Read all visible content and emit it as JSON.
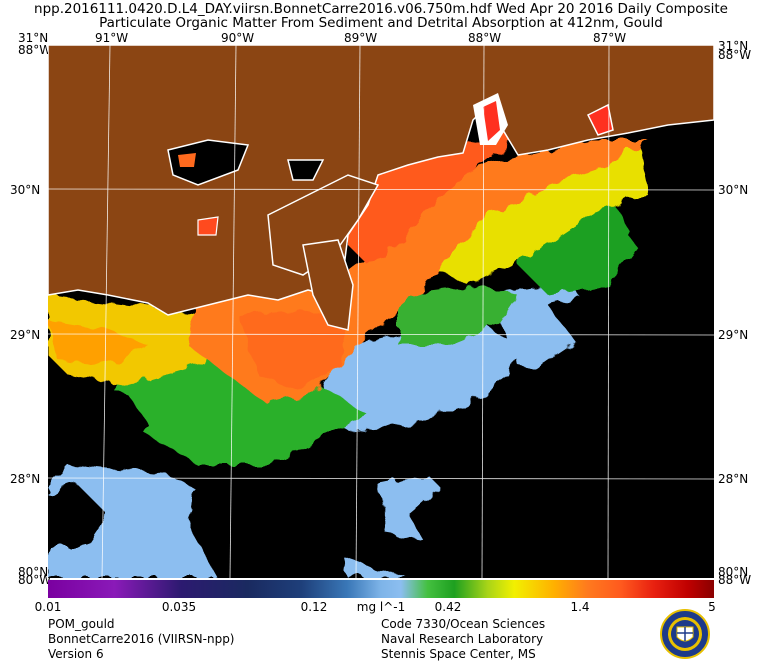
{
  "header": {
    "title_line1": "npp.2016111.0420.D.L4_DAY.viirsn.BonnetCarre2016.v06.750m.hdf    Wed Apr 20 2016 Daily Composite",
    "title_line2": "Particulate Organic Matter From Sediment and Detrital Absorption at 412nm, Gould"
  },
  "axes": {
    "top_lon": [
      "91°W",
      "90°W",
      "89°W",
      "88°W",
      "87°W"
    ],
    "lat_left": [
      "30°N",
      "29°N",
      "28°N"
    ],
    "lat_right": [
      "30°N",
      "29°N",
      "28°N"
    ],
    "corner_top_left": "31°N",
    "corner_top_left_2": "88°W",
    "corner_top_right": "31°N",
    "corner_top_right_2": "88°W",
    "corner_bottom_left": "80°N",
    "corner_bottom_left_2": "80°W",
    "corner_bottom_right": "80°N",
    "corner_bottom_right_2": "88°W"
  },
  "colorbar": {
    "tick_labels": [
      "0.01",
      "0.035",
      "0.12",
      "mg l^-1",
      "0.42",
      "1.4",
      "5"
    ],
    "scale": "log",
    "min": 0.01,
    "max": 5
  },
  "footer_left": [
    "POM_gould",
    "BonnetCarre2016 (VIIRSN-npp)",
    "Version 6"
  ],
  "footer_right": [
    "Code 7330/Ocean Sciences",
    "Naval Research Laboratory",
    "Stennis Space Center, MS"
  ],
  "colors": {
    "land": "#8b4513",
    "nodata": "#000000",
    "coastline": "#ffffff",
    "grid": "#ffffff"
  }
}
